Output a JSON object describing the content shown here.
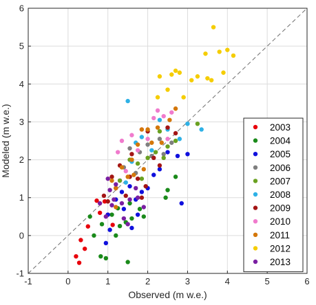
{
  "chart_data": {
    "type": "scatter",
    "title": "",
    "xlabel": "Observed (m w.e.)",
    "ylabel": "Modeled (m w.e.)",
    "xlim": [
      -1,
      6
    ],
    "ylim": [
      -1,
      6
    ],
    "xticks": [
      "-1",
      "0",
      "1",
      "2",
      "3",
      "4",
      "5",
      "6"
    ],
    "yticks": [
      "-1",
      "0",
      "1",
      "2",
      "3",
      "4",
      "5",
      "6"
    ],
    "grid": true,
    "reference_line": "1:1 dashed",
    "legend_position": "bottom-right",
    "series": [
      {
        "name": "2003",
        "color": "#e8000b",
        "points": [
          [
            0.2,
            -0.55
          ],
          [
            0.28,
            -0.72
          ],
          [
            0.32,
            -0.12
          ],
          [
            0.42,
            -0.35
          ],
          [
            0.5,
            0.24
          ],
          [
            0.72,
            0.92
          ],
          [
            0.8,
            0.6
          ],
          [
            0.92,
            0.9
          ],
          [
            1.0,
            0.55
          ],
          [
            1.12,
            0.28
          ]
        ]
      },
      {
        "name": "2004",
        "color": "#1a8a1a",
        "points": [
          [
            0.55,
            0.5
          ],
          [
            0.65,
            0.0
          ],
          [
            0.82,
            -0.55
          ],
          [
            0.85,
            0.3
          ],
          [
            0.95,
            -0.6
          ],
          [
            1.1,
            0.55
          ],
          [
            1.2,
            0.0
          ],
          [
            1.3,
            0.25
          ],
          [
            1.5,
            -0.7
          ],
          [
            1.55,
            0.85
          ],
          [
            1.6,
            0.45
          ],
          [
            1.8,
            0.7
          ],
          [
            1.9,
            0.5
          ],
          [
            2.5,
            1.2
          ],
          [
            2.7,
            1.55
          ],
          [
            1.25,
            0.72
          ],
          [
            1.45,
            0.35
          ],
          [
            2.45,
            1.0
          ]
        ]
      },
      {
        "name": "2005",
        "color": "#1010dd",
        "points": [
          [
            0.95,
            -0.2
          ],
          [
            1.0,
            0.55
          ],
          [
            1.05,
            0.15
          ],
          [
            1.2,
            0.95
          ],
          [
            1.3,
            1.45
          ],
          [
            1.4,
            0.7
          ],
          [
            1.55,
            1.3
          ],
          [
            1.6,
            0.2
          ],
          [
            1.7,
            0.95
          ],
          [
            1.85,
            1.15
          ],
          [
            2.0,
            1.25
          ],
          [
            2.15,
            1.6
          ],
          [
            2.3,
            1.75
          ],
          [
            2.5,
            2.2
          ],
          [
            2.75,
            2.1
          ],
          [
            2.85,
            0.85
          ],
          [
            3.0,
            2.15
          ],
          [
            1.75,
            0.55
          ],
          [
            1.35,
            1.15
          ]
        ]
      },
      {
        "name": "2006",
        "color": "#7f7f7f",
        "points": [
          [
            1.4,
            1.8
          ],
          [
            1.55,
            2.3
          ],
          [
            1.7,
            1.65
          ],
          [
            1.8,
            2.2
          ],
          [
            2.0,
            2.4
          ],
          [
            2.1,
            2.1
          ],
          [
            2.3,
            2.55
          ],
          [
            2.4,
            2.15
          ],
          [
            2.6,
            2.45
          ]
        ]
      },
      {
        "name": "2007",
        "color": "#6aa121",
        "points": [
          [
            1.3,
            1.45
          ],
          [
            1.55,
            2.0
          ],
          [
            1.75,
            1.9
          ],
          [
            2.0,
            2.05
          ],
          [
            2.2,
            2.2
          ],
          [
            2.3,
            2.75
          ],
          [
            2.4,
            2.05
          ],
          [
            2.5,
            2.35
          ],
          [
            2.7,
            2.5
          ],
          [
            3.25,
            2.95
          ],
          [
            1.85,
            1.5
          ]
        ]
      },
      {
        "name": "2008",
        "color": "#2eb1e6",
        "points": [
          [
            1.5,
            3.55
          ],
          [
            1.6,
            1.95
          ],
          [
            1.7,
            2.45
          ],
          [
            1.85,
            2.6
          ],
          [
            2.1,
            2.25
          ],
          [
            2.3,
            3.05
          ],
          [
            2.5,
            2.8
          ],
          [
            2.8,
            2.55
          ],
          [
            3.0,
            2.95
          ],
          [
            3.35,
            2.8
          ],
          [
            1.45,
            1.4
          ]
        ]
      },
      {
        "name": "2009",
        "color": "#a31515",
        "points": [
          [
            0.9,
            1.05
          ],
          [
            1.0,
            0.9
          ],
          [
            1.1,
            1.55
          ],
          [
            1.2,
            1.25
          ],
          [
            1.3,
            1.85
          ],
          [
            1.45,
            1.05
          ],
          [
            1.6,
            2.15
          ],
          [
            1.75,
            1.5
          ],
          [
            1.85,
            1.0
          ],
          [
            2.0,
            2.75
          ],
          [
            2.15,
            2.05
          ],
          [
            2.3,
            1.85
          ],
          [
            2.5,
            2.85
          ],
          [
            2.7,
            2.7
          ],
          [
            1.55,
            1.55
          ],
          [
            1.95,
            1.3
          ]
        ]
      },
      {
        "name": "2010",
        "color": "#f07bcd",
        "points": [
          [
            1.25,
            2.2
          ],
          [
            1.35,
            2.5
          ],
          [
            1.45,
            1.7
          ],
          [
            1.6,
            2.65
          ],
          [
            1.75,
            2.25
          ],
          [
            1.85,
            2.8
          ],
          [
            2.0,
            2.55
          ],
          [
            2.15,
            3.1
          ],
          [
            2.25,
            3.3
          ],
          [
            2.4,
            3.15
          ],
          [
            2.6,
            3.25
          ],
          [
            2.5,
            2.55
          ]
        ]
      },
      {
        "name": "2011",
        "color": "#d4770a",
        "points": [
          [
            1.1,
            1.45
          ],
          [
            1.2,
            1.25
          ],
          [
            1.35,
            1.8
          ],
          [
            1.5,
            1.55
          ],
          [
            1.6,
            2.0
          ],
          [
            1.75,
            2.4
          ],
          [
            1.85,
            2.8
          ],
          [
            2.0,
            2.8
          ],
          [
            2.1,
            2.45
          ],
          [
            2.25,
            2.85
          ],
          [
            2.35,
            2.45
          ],
          [
            2.55,
            3.05
          ],
          [
            2.7,
            3.35
          ],
          [
            1.9,
            1.75
          ],
          [
            1.65,
            1.6
          ],
          [
            1.2,
            0.75
          ]
        ]
      },
      {
        "name": "2012",
        "color": "#f5cd00",
        "points": [
          [
            2.25,
            3.65
          ],
          [
            2.3,
            4.2
          ],
          [
            2.5,
            3.85
          ],
          [
            2.6,
            4.25
          ],
          [
            2.7,
            4.35
          ],
          [
            2.8,
            4.3
          ],
          [
            2.9,
            3.65
          ],
          [
            3.1,
            4.1
          ],
          [
            3.25,
            4.2
          ],
          [
            3.45,
            4.8
          ],
          [
            3.5,
            4.15
          ],
          [
            3.65,
            5.5
          ],
          [
            3.8,
            4.85
          ],
          [
            3.9,
            4.3
          ],
          [
            4.0,
            4.9
          ],
          [
            4.15,
            4.75
          ],
          [
            3.6,
            4.1
          ]
        ]
      },
      {
        "name": "2013",
        "color": "#7a1fa2",
        "points": [
          [
            0.8,
            0.85
          ],
          [
            0.95,
            0.5
          ],
          [
            1.0,
            1.5
          ],
          [
            1.05,
            1.2
          ],
          [
            1.15,
            0.95
          ],
          [
            1.2,
            1.35
          ],
          [
            1.35,
            0.85
          ],
          [
            1.4,
            0.45
          ],
          [
            1.5,
            0.3
          ],
          [
            1.55,
            0.95
          ],
          [
            1.7,
            1.25
          ],
          [
            1.75,
            1.0
          ],
          [
            1.9,
            0.75
          ],
          [
            1.1,
            0.8
          ]
        ]
      }
    ]
  }
}
